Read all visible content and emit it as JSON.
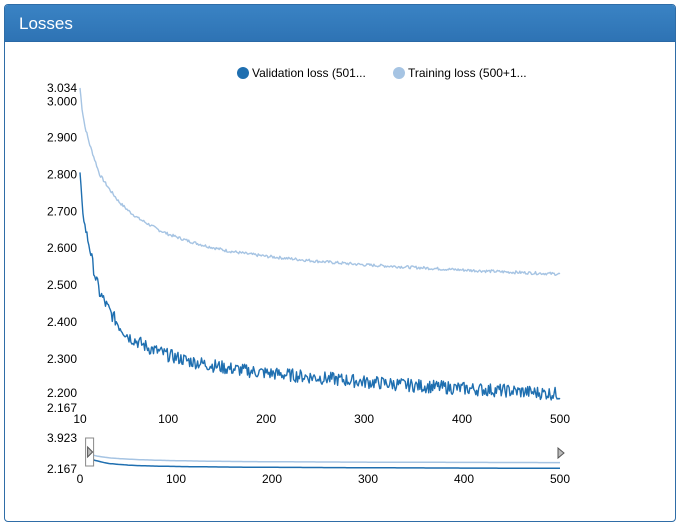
{
  "panel": {
    "title": "Losses"
  },
  "colors": {
    "header": "#337ab7",
    "validation": "#1f6fb0",
    "training": "#a6c4e3"
  },
  "chart_data": {
    "type": "line",
    "title": "Losses",
    "legend_position": "top-center",
    "series": [
      {
        "name": "Validation loss (501...",
        "color": "#1f6fb0",
        "x": [
          10,
          12,
          15,
          20,
          25,
          30,
          40,
          50,
          60,
          70,
          80,
          90,
          100,
          120,
          140,
          160,
          180,
          200,
          250,
          300,
          350,
          400,
          450,
          480,
          500
        ],
        "y": [
          2.8,
          2.72,
          2.66,
          2.6,
          2.53,
          2.48,
          2.43,
          2.39,
          2.36,
          2.345,
          2.33,
          2.32,
          2.31,
          2.295,
          2.285,
          2.275,
          2.268,
          2.262,
          2.25,
          2.238,
          2.228,
          2.22,
          2.213,
          2.208,
          2.205
        ]
      },
      {
        "name": "Training loss (500+1...",
        "color": "#a6c4e3",
        "x": [
          10,
          12,
          15,
          20,
          25,
          30,
          40,
          50,
          60,
          70,
          80,
          90,
          100,
          120,
          140,
          160,
          180,
          200,
          250,
          300,
          350,
          400,
          450,
          480,
          500
        ],
        "y": [
          3.034,
          2.98,
          2.93,
          2.88,
          2.84,
          2.8,
          2.76,
          2.725,
          2.7,
          2.68,
          2.665,
          2.65,
          2.638,
          2.62,
          2.605,
          2.593,
          2.585,
          2.578,
          2.565,
          2.555,
          2.548,
          2.541,
          2.535,
          2.532,
          2.53
        ]
      }
    ],
    "main": {
      "xlim": [
        10,
        500
      ],
      "ylim": [
        2.167,
        3.034
      ],
      "x_ticks": [
        "10",
        "100",
        "200",
        "300",
        "400",
        "500"
      ],
      "y_ticks": [
        "3.034",
        "3.000",
        "2.900",
        "2.800",
        "2.700",
        "2.600",
        "2.500",
        "2.400",
        "2.300",
        "2.200",
        "2.167"
      ]
    },
    "overview": {
      "xlim": [
        0,
        500
      ],
      "ylim": [
        2.167,
        3.923
      ],
      "x_ticks": [
        "0",
        "100",
        "200",
        "300",
        "400",
        "500"
      ],
      "y_ticks": [
        "3.923",
        "2.167"
      ]
    }
  }
}
